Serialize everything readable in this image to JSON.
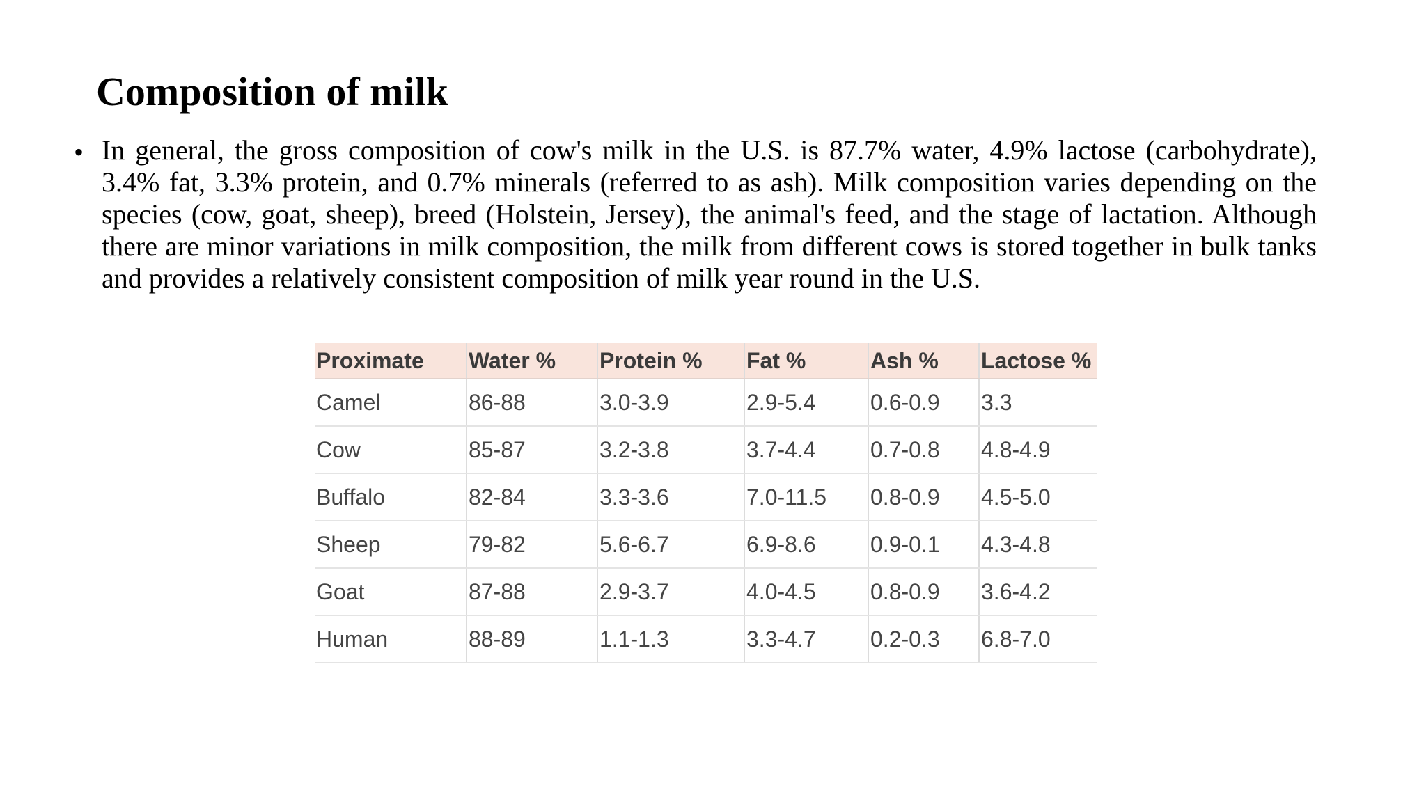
{
  "title": "Composition of milk",
  "bullet": {
    "marker": "•",
    "text": "In general, the gross composition of cow's milk in the U.S. is 87.7% water, 4.9% lactose (carbohydrate), 3.4% fat, 3.3% protein, and 0.7% minerals (referred to as ash). Milk composition varies depending on the species (cow, goat, sheep), breed (Holstein, Jersey), the animal's feed, and the stage of lactation. Although there are minor variations in milk composition, the milk from different cows is stored together in bulk tanks and provides a relatively consistent composition of milk year round in the U.S."
  },
  "table": {
    "headers": [
      "Proximate",
      "Water %",
      "Protein %",
      "Fat %",
      "Ash %",
      "Lactose %"
    ],
    "rows": [
      [
        "Camel",
        "86-88",
        "3.0-3.9",
        "2.9-5.4",
        "0.6-0.9",
        "3.3"
      ],
      [
        "Cow",
        "85-87",
        "3.2-3.8",
        "3.7-4.4",
        "0.7-0.8",
        "4.8-4.9"
      ],
      [
        "Buffalo",
        "82-84",
        "3.3-3.6",
        "7.0-11.5",
        "0.8-0.9",
        "4.5-5.0"
      ],
      [
        "Sheep",
        "79-82",
        "5.6-6.7",
        "6.9-8.6",
        "0.9-0.1",
        "4.3-4.8"
      ],
      [
        "Goat",
        "87-88",
        "2.9-3.7",
        "4.0-4.5",
        "0.8-0.9",
        "3.6-4.2"
      ],
      [
        "Human",
        "88-89",
        "1.1-1.3",
        "3.3-4.7",
        "0.2-0.3",
        "6.8-7.0"
      ]
    ]
  },
  "colors": {
    "header_background": "#f9e4dc",
    "table_text": "#444444",
    "body_text": "#000000"
  }
}
